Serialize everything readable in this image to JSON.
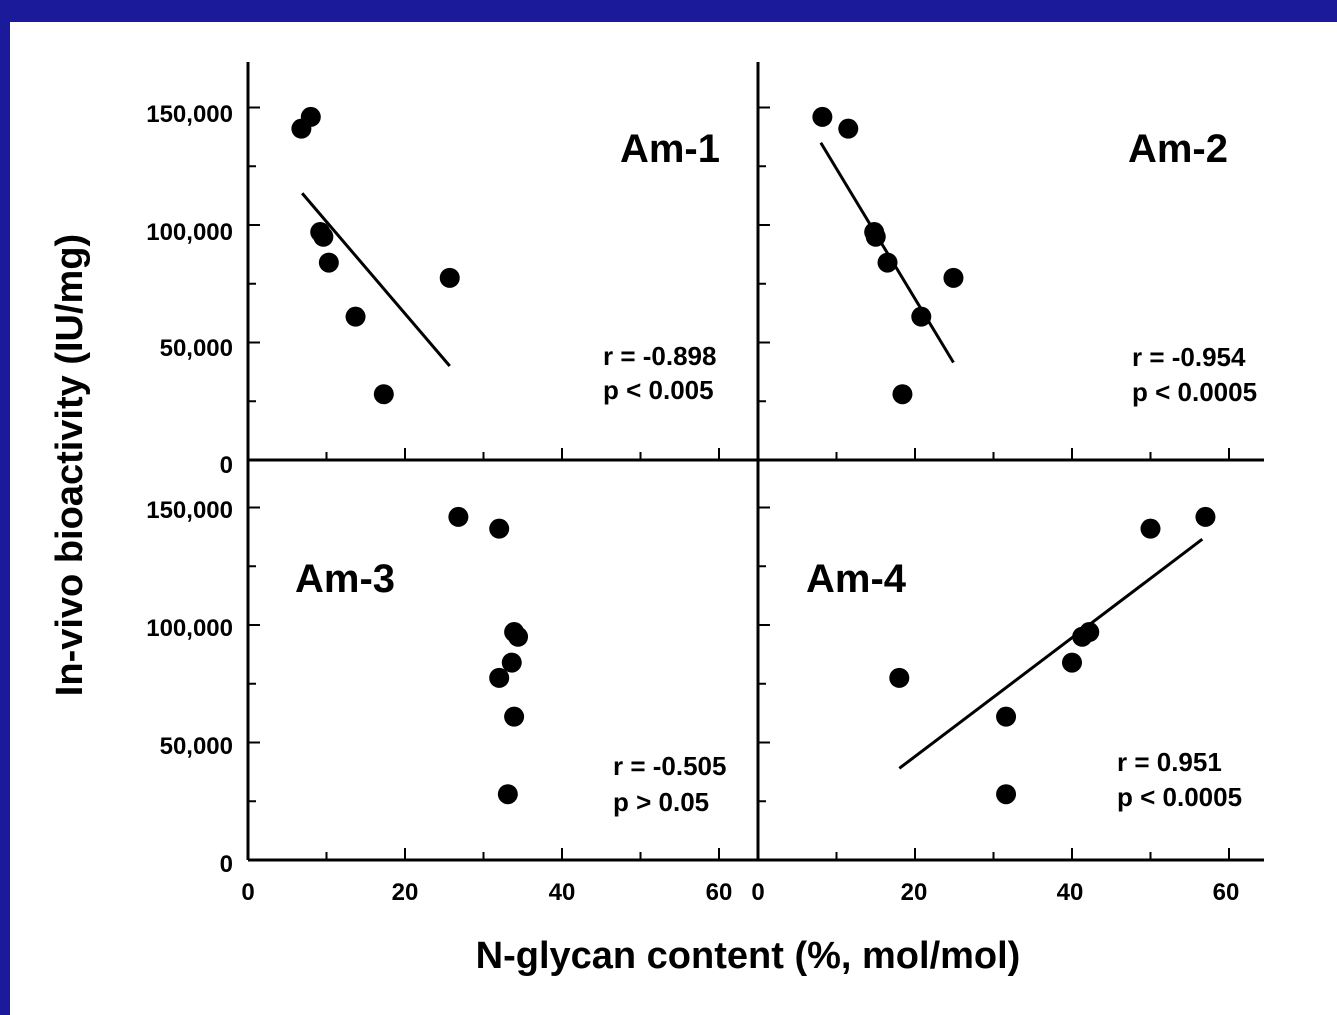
{
  "colors": {
    "background_border": "#1a1a9a",
    "plot_background": "#ffffff",
    "ink": "#000000"
  },
  "chart_data": {
    "type": "scatter",
    "xlabel": "N-glycan content (%, mol/mol)",
    "ylabel": "In-vivo bioactivity (IU/mg)",
    "xlim": [
      0,
      65
    ],
    "ylim": [
      0,
      150000
    ],
    "x_ticks": [
      0,
      20,
      40,
      60
    ],
    "y_tick_labels": [
      "0",
      "50,000",
      "100,000",
      "150,000"
    ],
    "y_ticks": [
      0,
      50000,
      100000,
      150000
    ],
    "grid": false,
    "panels": [
      {
        "title": "Am-1",
        "stat_r": "r = -0.898",
        "stat_p": "p < 0.005",
        "points": [
          {
            "x": 6.8,
            "y": 141000
          },
          {
            "x": 8.0,
            "y": 146000
          },
          {
            "x": 9.2,
            "y": 97000
          },
          {
            "x": 9.6,
            "y": 95000
          },
          {
            "x": 10.3,
            "y": 84000
          },
          {
            "x": 13.7,
            "y": 61000
          },
          {
            "x": 17.3,
            "y": 28000
          },
          {
            "x": 25.7,
            "y": 77500
          }
        ],
        "fit": {
          "x": [
            6.9,
            25.7
          ],
          "y": [
            113500,
            40000
          ]
        }
      },
      {
        "title": "Am-2",
        "stat_r": "r = -0.954",
        "stat_p": "p < 0.0005",
        "points": [
          {
            "x": 8.2,
            "y": 146000
          },
          {
            "x": 11.5,
            "y": 141000
          },
          {
            "x": 14.8,
            "y": 97000
          },
          {
            "x": 15.0,
            "y": 95000
          },
          {
            "x": 16.5,
            "y": 84000
          },
          {
            "x": 20.8,
            "y": 61000
          },
          {
            "x": 18.4,
            "y": 28000
          },
          {
            "x": 24.9,
            "y": 77500
          }
        ],
        "fit": {
          "x": [
            8.0,
            24.9
          ],
          "y": [
            135000,
            41500
          ]
        }
      },
      {
        "title": "Am-3",
        "stat_r": "r = -0.505",
        "stat_p": "p > 0.05",
        "points": [
          {
            "x": 26.8,
            "y": 146000
          },
          {
            "x": 32.0,
            "y": 141000
          },
          {
            "x": 33.9,
            "y": 97000
          },
          {
            "x": 34.4,
            "y": 95000
          },
          {
            "x": 33.6,
            "y": 84000
          },
          {
            "x": 32.0,
            "y": 77500
          },
          {
            "x": 33.9,
            "y": 61000
          },
          {
            "x": 33.1,
            "y": 28000
          }
        ],
        "fit": null
      },
      {
        "title": "Am-4",
        "stat_r": "r = 0.951",
        "stat_p": "p < 0.0005",
        "points": [
          {
            "x": 57.0,
            "y": 146000
          },
          {
            "x": 50.0,
            "y": 141000
          },
          {
            "x": 42.2,
            "y": 97000
          },
          {
            "x": 41.3,
            "y": 95000
          },
          {
            "x": 40.0,
            "y": 84000
          },
          {
            "x": 18.0,
            "y": 77500
          },
          {
            "x": 31.6,
            "y": 61000
          },
          {
            "x": 31.6,
            "y": 28000
          }
        ],
        "fit": {
          "x": [
            18.0,
            56.6
          ],
          "y": [
            39000,
            136500
          ]
        }
      }
    ]
  }
}
